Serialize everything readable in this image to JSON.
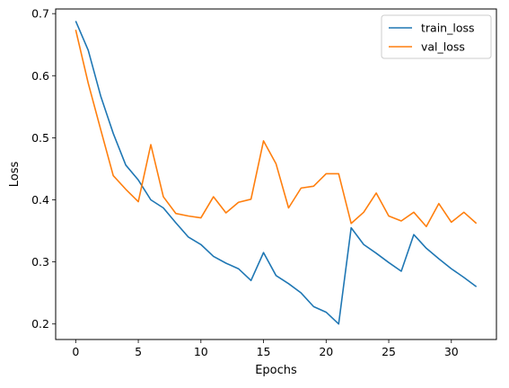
{
  "chart_data": {
    "type": "line",
    "title": "",
    "xlabel": "Epochs",
    "ylabel": "Loss",
    "xlim": [
      -1.6,
      33.6
    ],
    "ylim": [
      0.175,
      0.7075
    ],
    "xticks": [
      0,
      5,
      10,
      15,
      20,
      25,
      30
    ],
    "yticks": [
      0.2,
      0.3,
      0.4,
      0.5,
      0.6,
      0.7
    ],
    "xtick_labels": [
      "0",
      "5",
      "10",
      "15",
      "20",
      "25",
      "30"
    ],
    "ytick_labels": [
      "0.2",
      "0.3",
      "0.4",
      "0.5",
      "0.6",
      "0.7"
    ],
    "grid": false,
    "legend": "top-right",
    "x": [
      0,
      1,
      2,
      3,
      4,
      5,
      6,
      7,
      8,
      9,
      10,
      11,
      12,
      13,
      14,
      15,
      16,
      17,
      18,
      19,
      20,
      21,
      22,
      23,
      24,
      25,
      26,
      27,
      28,
      29,
      30,
      31,
      32
    ],
    "series": [
      {
        "name": "train_loss",
        "color": "#1f77b4",
        "values": [
          0.688,
          0.641,
          0.567,
          0.507,
          0.456,
          0.432,
          0.4,
          0.387,
          0.363,
          0.34,
          0.328,
          0.309,
          0.298,
          0.289,
          0.27,
          0.315,
          0.278,
          0.265,
          0.25,
          0.228,
          0.219,
          0.2,
          0.355,
          0.328,
          0.314,
          0.299,
          0.285,
          0.344,
          0.322,
          0.305,
          0.289,
          0.275,
          0.26
        ]
      },
      {
        "name": "val_loss",
        "color": "#ff7f0e",
        "values": [
          0.674,
          0.588,
          0.513,
          0.439,
          0.417,
          0.397,
          0.489,
          0.405,
          0.378,
          0.374,
          0.371,
          0.405,
          0.379,
          0.396,
          0.401,
          0.495,
          0.458,
          0.387,
          0.419,
          0.422,
          0.442,
          0.442,
          0.362,
          0.38,
          0.411,
          0.374,
          0.366,
          0.38,
          0.357,
          0.394,
          0.364,
          0.38,
          0.362
        ]
      }
    ]
  }
}
